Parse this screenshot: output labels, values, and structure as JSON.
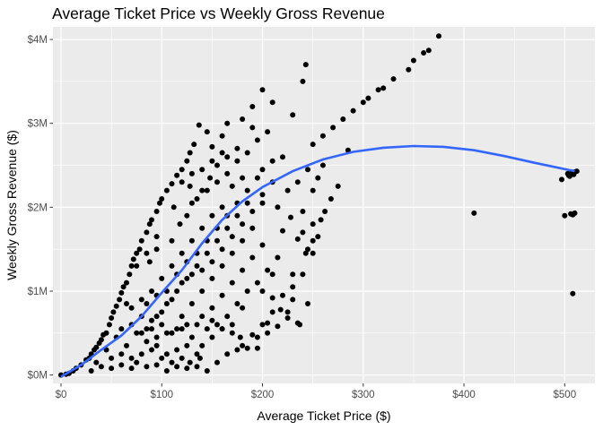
{
  "chart_data": {
    "type": "scatter",
    "title": "Average Ticket Price vs Weekly Gross Revenue",
    "xlabel": "Average Ticket Price ($)",
    "ylabel": "Weekly Gross Revenue ($)",
    "xlim": [
      -8,
      530
    ],
    "ylim": [
      -0.1,
      4.15
    ],
    "x_ticks": [
      {
        "value": 0,
        "label": "$0"
      },
      {
        "value": 100,
        "label": "$100"
      },
      {
        "value": 200,
        "label": "$200"
      },
      {
        "value": 300,
        "label": "$300"
      },
      {
        "value": 400,
        "label": "$400"
      },
      {
        "value": 500,
        "label": "$500"
      }
    ],
    "y_ticks": [
      {
        "value": 0,
        "label": "$0M"
      },
      {
        "value": 1,
        "label": "$1M"
      },
      {
        "value": 2,
        "label": "$2M"
      },
      {
        "value": 3,
        "label": "$3M"
      },
      {
        "value": 4,
        "label": "$4M"
      }
    ],
    "grid": true,
    "background": "#EBEBEB",
    "point_color": "#000000",
    "smooth_color": "#3366FF",
    "points": [
      [
        0,
        0
      ],
      [
        5,
        0.01
      ],
      [
        8,
        0.02
      ],
      [
        12,
        0.05
      ],
      [
        15,
        0.08
      ],
      [
        20,
        0.12
      ],
      [
        25,
        0.18
      ],
      [
        28,
        0.2
      ],
      [
        30,
        0.25
      ],
      [
        33,
        0.3
      ],
      [
        35,
        0.33
      ],
      [
        38,
        0.38
      ],
      [
        40,
        0.42
      ],
      [
        42,
        0.48
      ],
      [
        45,
        0.5
      ],
      [
        48,
        0.6
      ],
      [
        50,
        0.68
      ],
      [
        52,
        0.75
      ],
      [
        55,
        0.82
      ],
      [
        58,
        0.9
      ],
      [
        60,
        0.98
      ],
      [
        62,
        1.05
      ],
      [
        65,
        1.1
      ],
      [
        68,
        1.2
      ],
      [
        70,
        1.3
      ],
      [
        72,
        1.38
      ],
      [
        75,
        1.45
      ],
      [
        78,
        1.5
      ],
      [
        80,
        1.6
      ],
      [
        85,
        1.7
      ],
      [
        88,
        1.8
      ],
      [
        90,
        1.85
      ],
      [
        95,
        1.95
      ],
      [
        98,
        2.05
      ],
      [
        100,
        2.1
      ],
      [
        105,
        2.2
      ],
      [
        110,
        2.28
      ],
      [
        115,
        2.38
      ],
      [
        120,
        2.45
      ],
      [
        125,
        2.55
      ],
      [
        128,
        2.65
      ],
      [
        132,
        2.75
      ],
      [
        137,
        2.98
      ],
      [
        145,
        2.9
      ],
      [
        150,
        2.72
      ],
      [
        160,
        2.85
      ],
      [
        165,
        3.0
      ],
      [
        180,
        3.05
      ],
      [
        190,
        3.2
      ],
      [
        200,
        3.4
      ],
      [
        210,
        3.25
      ],
      [
        230,
        3.1
      ],
      [
        240,
        3.5
      ],
      [
        243,
        3.7
      ],
      [
        250,
        2.75
      ],
      [
        260,
        2.85
      ],
      [
        270,
        2.95
      ],
      [
        280,
        3.05
      ],
      [
        290,
        3.15
      ],
      [
        300,
        3.25
      ],
      [
        305,
        3.3
      ],
      [
        320,
        3.42
      ],
      [
        330,
        3.53
      ],
      [
        345,
        3.64
      ],
      [
        350,
        3.75
      ],
      [
        360,
        3.84
      ],
      [
        365,
        3.87
      ],
      [
        375,
        4.04
      ],
      [
        285,
        2.68
      ],
      [
        315,
        3.4
      ],
      [
        60,
        0.55
      ],
      [
        70,
        0.6
      ],
      [
        80,
        0.5
      ],
      [
        90,
        0.55
      ],
      [
        100,
        0.6
      ],
      [
        110,
        0.5
      ],
      [
        120,
        0.55
      ],
      [
        130,
        0.45
      ],
      [
        140,
        0.35
      ],
      [
        150,
        0.45
      ],
      [
        160,
        0.55
      ],
      [
        170,
        0.5
      ],
      [
        180,
        0.35
      ],
      [
        190,
        0.48
      ],
      [
        200,
        0.6
      ],
      [
        210,
        0.75
      ],
      [
        220,
        0.95
      ],
      [
        230,
        1.05
      ],
      [
        240,
        1.2
      ],
      [
        250,
        1.45
      ],
      [
        195,
        0.32
      ],
      [
        205,
        0.62
      ],
      [
        225,
        0.75
      ],
      [
        235,
        0.62
      ],
      [
        245,
        0.85
      ],
      [
        237,
        0.6
      ],
      [
        243,
        1.45
      ],
      [
        195,
        0.45
      ],
      [
        150,
        0.65
      ],
      [
        160,
        0.55
      ],
      [
        75,
        0.15
      ],
      [
        85,
        0.1
      ],
      [
        95,
        0.12
      ],
      [
        105,
        0.05
      ],
      [
        115,
        0.1
      ],
      [
        125,
        0.08
      ],
      [
        135,
        0.1
      ],
      [
        145,
        0.05
      ],
      [
        155,
        0.15
      ],
      [
        165,
        0.25
      ],
      [
        175,
        0.3
      ],
      [
        185,
        0.32
      ],
      [
        138,
        0.2
      ],
      [
        128,
        0.15
      ],
      [
        178,
        0.45
      ],
      [
        205,
        0.5
      ],
      [
        215,
        0.58
      ],
      [
        225,
        0.68
      ],
      [
        218,
        0.78
      ],
      [
        230,
        0.9
      ],
      [
        210,
        0.92
      ],
      [
        235,
        1.62
      ],
      [
        240,
        1.95
      ],
      [
        250,
        2.2
      ],
      [
        255,
        2.35
      ],
      [
        260,
        2.5
      ],
      [
        220,
        1.72
      ],
      [
        228,
        1.88
      ],
      [
        200,
        1.55
      ],
      [
        190,
        1.4
      ],
      [
        180,
        1.25
      ],
      [
        170,
        1.1
      ],
      [
        160,
        0.95
      ],
      [
        150,
        0.8
      ],
      [
        140,
        0.7
      ],
      [
        110,
        1.6
      ],
      [
        118,
        1.8
      ],
      [
        130,
        2.05
      ],
      [
        140,
        2.2
      ],
      [
        148,
        2.35
      ],
      [
        155,
        2.5
      ],
      [
        165,
        2.6
      ],
      [
        175,
        2.55
      ],
      [
        185,
        2.65
      ],
      [
        195,
        2.8
      ],
      [
        205,
        2.9
      ],
      [
        190,
        2.95
      ],
      [
        170,
        2.25
      ],
      [
        180,
        2.35
      ],
      [
        200,
        2.45
      ],
      [
        210,
        2.55
      ],
      [
        220,
        2.6
      ],
      [
        215,
        2.0
      ],
      [
        225,
        2.2
      ],
      [
        235,
        2.3
      ],
      [
        245,
        2.45
      ],
      [
        250,
        1.6
      ],
      [
        245,
        1.5
      ],
      [
        250,
        1.8
      ],
      [
        240,
        1.7
      ],
      [
        230,
        1.2
      ],
      [
        180,
        0.8
      ],
      [
        170,
        0.6
      ],
      [
        200,
        1.0
      ],
      [
        210,
        1.2
      ],
      [
        160,
        2.0
      ],
      [
        150,
        1.9
      ],
      [
        140,
        1.75
      ],
      [
        130,
        1.6
      ],
      [
        120,
        1.45
      ],
      [
        110,
        1.3
      ],
      [
        100,
        1.15
      ],
      [
        90,
        1.0
      ],
      [
        80,
        0.9
      ],
      [
        70,
        0.8
      ],
      [
        190,
        1.75
      ],
      [
        180,
        1.6
      ],
      [
        170,
        1.45
      ],
      [
        160,
        1.3
      ],
      [
        150,
        1.15
      ],
      [
        140,
        1.0
      ],
      [
        130,
        0.85
      ],
      [
        120,
        0.7
      ],
      [
        110,
        0.9
      ],
      [
        100,
        0.75
      ],
      [
        90,
        0.65
      ],
      [
        80,
        0.7
      ],
      [
        185,
        2.05
      ],
      [
        175,
        1.9
      ],
      [
        165,
        1.75
      ],
      [
        155,
        1.6
      ],
      [
        145,
        1.45
      ],
      [
        135,
        1.3
      ],
      [
        125,
        1.15
      ],
      [
        115,
        1.0
      ],
      [
        105,
        0.85
      ],
      [
        95,
        0.7
      ],
      [
        85,
        0.55
      ],
      [
        130,
        2.4
      ],
      [
        120,
        2.3
      ],
      [
        112,
        2.0
      ],
      [
        95,
        1.5
      ],
      [
        88,
        1.35
      ],
      [
        200,
        2.15
      ],
      [
        210,
        2.3
      ],
      [
        95,
        1.65
      ],
      [
        85,
        1.45
      ],
      [
        75,
        1.3
      ],
      [
        65,
        0.85
      ],
      [
        55,
        0.45
      ],
      [
        45,
        0.3
      ],
      [
        35,
        0.15
      ],
      [
        65,
        0.35
      ],
      [
        75,
        0.5
      ],
      [
        85,
        0.4
      ],
      [
        95,
        0.35
      ],
      [
        105,
        0.25
      ],
      [
        115,
        0.3
      ],
      [
        125,
        0.35
      ],
      [
        135,
        0.25
      ],
      [
        120,
        1.1
      ],
      [
        130,
        1.2
      ],
      [
        140,
        1.25
      ],
      [
        150,
        1.35
      ],
      [
        160,
        1.5
      ],
      [
        170,
        1.65
      ],
      [
        180,
        1.8
      ],
      [
        190,
        1.95
      ],
      [
        200,
        2.05
      ],
      [
        50,
        0.2
      ],
      [
        60,
        0.25
      ],
      [
        70,
        0.2
      ],
      [
        80,
        0.25
      ],
      [
        90,
        0.3
      ],
      [
        100,
        0.2
      ],
      [
        110,
        0.15
      ],
      [
        120,
        0.2
      ],
      [
        60,
        0.12
      ],
      [
        70,
        0.08
      ],
      [
        40,
        0.1
      ],
      [
        30,
        0.05
      ],
      [
        50,
        0.08
      ],
      [
        255,
        1.65
      ],
      [
        258,
        1.85
      ],
      [
        262,
        1.95
      ],
      [
        268,
        2.1
      ],
      [
        275,
        2.25
      ],
      [
        215,
        1.4
      ],
      [
        205,
        1.25
      ],
      [
        195,
        1.1
      ],
      [
        185,
        1.0
      ],
      [
        175,
        0.85
      ],
      [
        165,
        0.7
      ],
      [
        155,
        0.6
      ],
      [
        145,
        0.55
      ],
      [
        135,
        0.6
      ],
      [
        125,
        0.6
      ],
      [
        115,
        0.55
      ],
      [
        105,
        0.5
      ],
      [
        95,
        0.45
      ],
      [
        85,
        0.85
      ],
      [
        95,
        0.95
      ],
      [
        105,
        1.0
      ],
      [
        115,
        1.2
      ],
      [
        125,
        1.35
      ],
      [
        135,
        1.45
      ],
      [
        145,
        1.6
      ],
      [
        155,
        1.75
      ],
      [
        165,
        1.9
      ],
      [
        175,
        2.05
      ],
      [
        185,
        2.2
      ],
      [
        195,
        2.35
      ],
      [
        165,
        2.4
      ],
      [
        175,
        2.7
      ],
      [
        160,
        2.65
      ],
      [
        150,
        2.55
      ],
      [
        140,
        2.45
      ],
      [
        128,
        2.25
      ],
      [
        125,
        1.9
      ],
      [
        135,
        2.1
      ],
      [
        145,
        2.2
      ],
      [
        155,
        2.3
      ],
      [
        410,
        1.93
      ],
      [
        497,
        2.33
      ],
      [
        500,
        1.9
      ],
      [
        503,
        2.4
      ],
      [
        505,
        2.37
      ],
      [
        507,
        2.42
      ],
      [
        508,
        1.91
      ],
      [
        508,
        2.4
      ],
      [
        508,
        0.97
      ],
      [
        510,
        2.42
      ],
      [
        510,
        1.93
      ],
      [
        512,
        2.43
      ],
      [
        506,
        1.92
      ],
      [
        504,
        2.38
      ],
      [
        509,
        2.39
      ]
    ],
    "smooth": [
      [
        0,
        -0.02
      ],
      [
        20,
        0.12
      ],
      [
        40,
        0.3
      ],
      [
        60,
        0.47
      ],
      [
        80,
        0.7
      ],
      [
        100,
        0.98
      ],
      [
        120,
        1.25
      ],
      [
        140,
        1.57
      ],
      [
        160,
        1.85
      ],
      [
        180,
        2.07
      ],
      [
        200,
        2.24
      ],
      [
        230,
        2.43
      ],
      [
        260,
        2.57
      ],
      [
        290,
        2.66
      ],
      [
        320,
        2.71
      ],
      [
        350,
        2.73
      ],
      [
        380,
        2.72
      ],
      [
        410,
        2.68
      ],
      [
        440,
        2.61
      ],
      [
        470,
        2.53
      ],
      [
        510,
        2.43
      ]
    ]
  }
}
